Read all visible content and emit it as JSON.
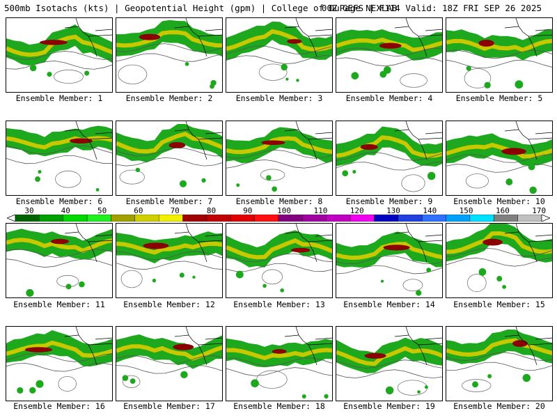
{
  "header": {
    "left": "500mb Isotachs (kts) | Geopotential Height (gpm) | College of DuPage NEXLAB",
    "right": "00Z GEFS | F114 Valid: 18Z FRI SEP 26 2025"
  },
  "members": [
    "Ensemble Member: 1",
    "Ensemble Member: 2",
    "Ensemble Member: 3",
    "Ensemble Member: 4",
    "Ensemble Member: 5",
    "Ensemble Member: 6",
    "Ensemble Member: 7",
    "Ensemble Member: 8",
    "Ensemble Member: 9",
    "Ensemble Member: 10",
    "Ensemble Member: 11",
    "Ensemble Member: 12",
    "Ensemble Member: 13",
    "Ensemble Member: 14",
    "Ensemble Member: 15",
    "Ensemble Member: 16",
    "Ensemble Member: 17",
    "Ensemble Member: 18",
    "Ensemble Member: 19",
    "Ensemble Member: 20"
  ],
  "legend": {
    "labels": [
      "30",
      "40",
      "50",
      "60",
      "70",
      "80",
      "90",
      "100",
      "110",
      "120",
      "130",
      "140",
      "150",
      "160",
      "170"
    ],
    "colors": [
      "#006400",
      "#00a000",
      "#00d800",
      "#20f020",
      "#a0a000",
      "#d0d000",
      "#f0f000",
      "#a00000",
      "#c00000",
      "#e00000",
      "#ff1010",
      "#800080",
      "#a000a0",
      "#c000c0",
      "#f000f0",
      "#0000c0",
      "#2040e0",
      "#3070ff",
      "#00a0ff",
      "#00e0ff",
      "#808080",
      "#c0c0c0"
    ]
  }
}
